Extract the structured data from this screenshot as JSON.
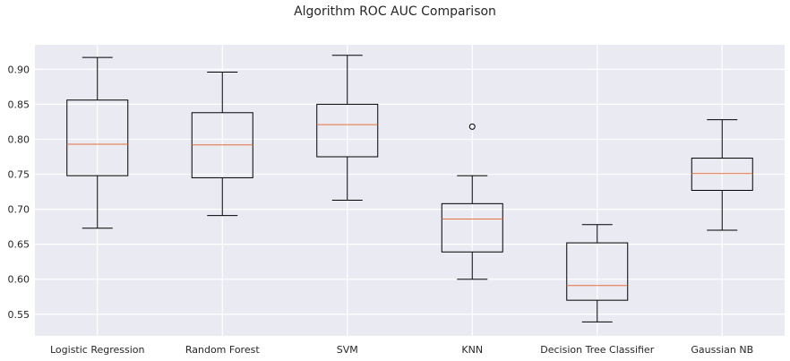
{
  "chart_data": {
    "type": "box",
    "title": "Algorithm ROC AUC Comparison",
    "xlabel": "",
    "ylabel": "",
    "categories": [
      "Logistic Regression",
      "Random Forest",
      "SVM",
      "KNN",
      "Decision Tree Classifier",
      "Gaussian NB"
    ],
    "boxes": [
      {
        "whisker_low": 0.673,
        "q1": 0.748,
        "median": 0.793,
        "q3": 0.856,
        "whisker_high": 0.917,
        "outliers": []
      },
      {
        "whisker_low": 0.691,
        "q1": 0.745,
        "median": 0.792,
        "q3": 0.838,
        "whisker_high": 0.896,
        "outliers": []
      },
      {
        "whisker_low": 0.713,
        "q1": 0.775,
        "median": 0.821,
        "q3": 0.85,
        "whisker_high": 0.92,
        "outliers": []
      },
      {
        "whisker_low": 0.6,
        "q1": 0.639,
        "median": 0.686,
        "q3": 0.708,
        "whisker_high": 0.748,
        "outliers": [
          0.818
        ]
      },
      {
        "whisker_low": 0.539,
        "q1": 0.57,
        "median": 0.591,
        "q3": 0.652,
        "whisker_high": 0.678,
        "outliers": []
      },
      {
        "whisker_low": 0.67,
        "q1": 0.727,
        "median": 0.751,
        "q3": 0.773,
        "whisker_high": 0.828,
        "outliers": []
      }
    ],
    "yticks": [
      "0.55",
      "0.60",
      "0.65",
      "0.70",
      "0.75",
      "0.80",
      "0.85",
      "0.90"
    ],
    "ylim": [
      0.519,
      0.935
    ],
    "grid": true,
    "colors": {
      "background": "#eaeaf2",
      "grid": "#ffffff",
      "box": "#000000",
      "median": "#e4703c",
      "text": "#262626"
    }
  }
}
